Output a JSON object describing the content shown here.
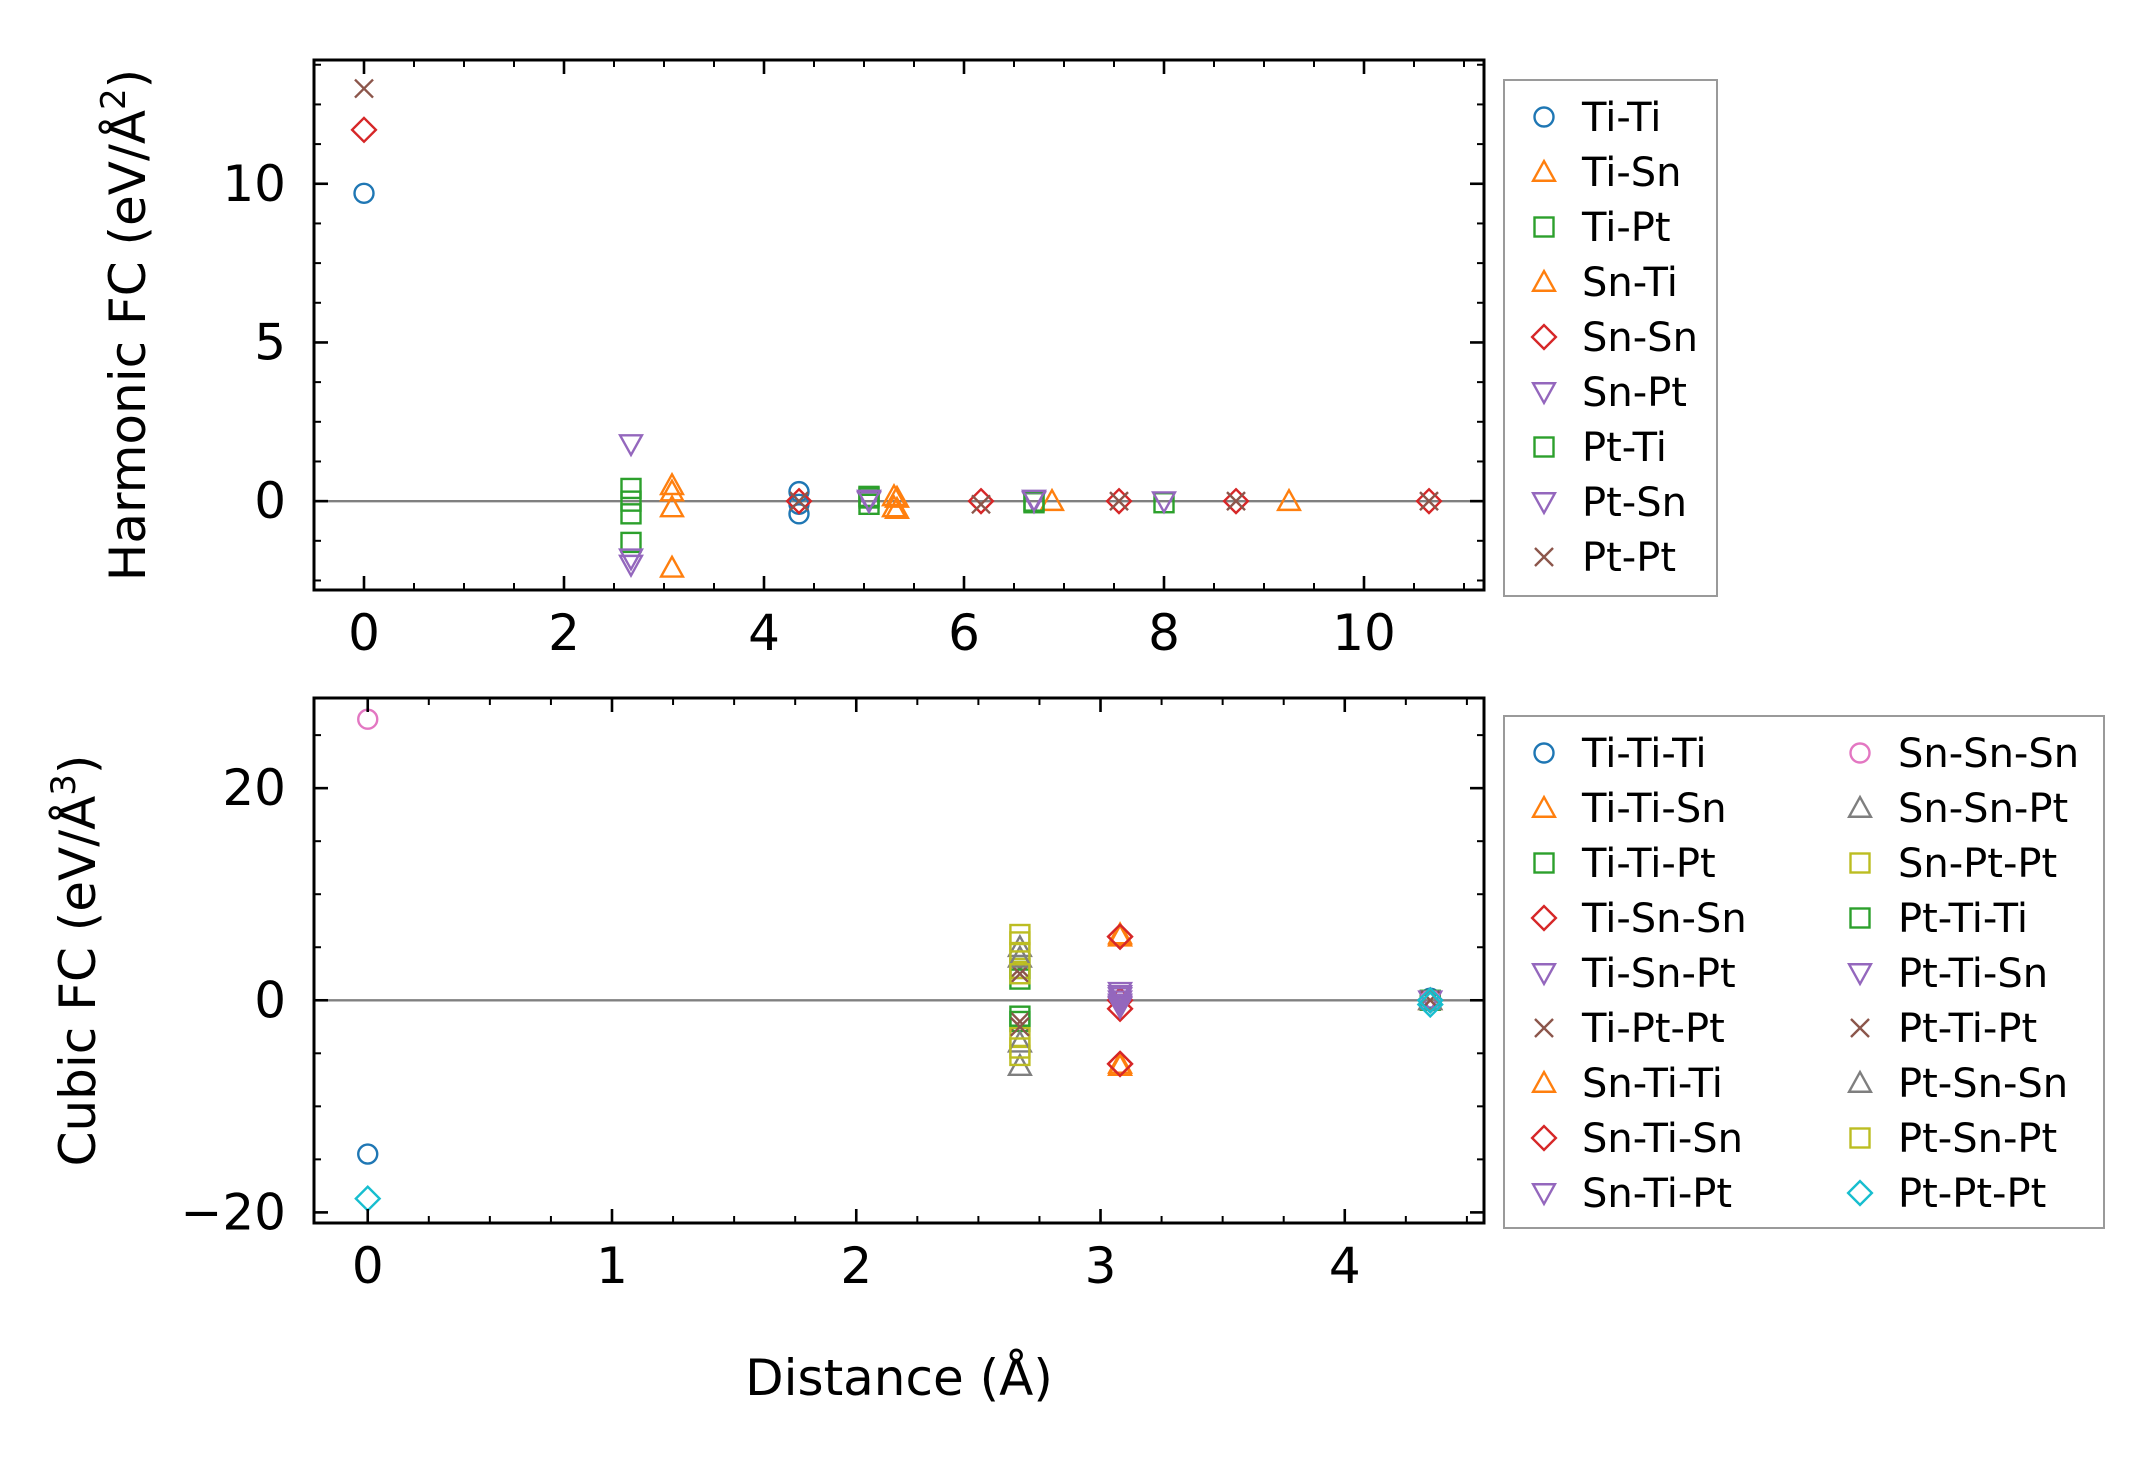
{
  "chart_data": [
    {
      "type": "scatter",
      "id": "harmonic",
      "ylabel_main": "Harmonic FC (eV/Å",
      "ylabel_sup": "2",
      "ylabel_close": ")",
      "xlim": [
        -0.5,
        11.2
      ],
      "ylim": [
        -2.8,
        13.9
      ],
      "xticks": [
        0,
        2,
        4,
        6,
        8,
        10
      ],
      "yticks": [
        0,
        5,
        10
      ],
      "xtick_labels": [
        "0",
        "2",
        "4",
        "6",
        "8",
        "10"
      ],
      "ytick_labels": [
        "0",
        "5",
        "10"
      ],
      "zero_line": 0,
      "legend_position": "outside-right",
      "series": [
        {
          "name": "Ti-Ti",
          "marker": "circle",
          "color": "#1f77b4",
          "points": [
            [
              0,
              9.7
            ],
            [
              4.35,
              0.3
            ],
            [
              4.35,
              -0.1
            ],
            [
              4.35,
              -0.4
            ]
          ]
        },
        {
          "name": "Ti-Sn",
          "marker": "triangle-up",
          "color": "#ff7f0e",
          "points": [
            [
              3.08,
              0.5
            ],
            [
              3.08,
              -0.2
            ],
            [
              3.08,
              -2.1
            ],
            [
              5.3,
              0.15
            ],
            [
              5.3,
              -0.2
            ],
            [
              6.88,
              0.0
            ],
            [
              9.25,
              0.0
            ]
          ]
        },
        {
          "name": "Ti-Pt",
          "marker": "square",
          "color": "#2ca02c",
          "points": [
            [
              2.67,
              0.4
            ],
            [
              2.67,
              -0.4
            ],
            [
              2.67,
              -1.3
            ],
            [
              5.05,
              0.15
            ],
            [
              5.05,
              -0.1
            ],
            [
              6.7,
              -0.05
            ],
            [
              8.0,
              -0.05
            ]
          ]
        },
        {
          "name": "Sn-Ti",
          "marker": "triangle-up",
          "color": "#ff7f0e",
          "points": [
            [
              3.08,
              0.3
            ],
            [
              5.33,
              0.1
            ],
            [
              5.33,
              -0.25
            ]
          ]
        },
        {
          "name": "Sn-Sn",
          "marker": "diamond",
          "color": "#d62728",
          "points": [
            [
              0,
              11.7
            ],
            [
              4.35,
              0.0
            ],
            [
              6.17,
              0.0
            ],
            [
              7.55,
              0.0
            ],
            [
              8.72,
              0.0
            ],
            [
              10.65,
              0.0
            ]
          ]
        },
        {
          "name": "Sn-Pt",
          "marker": "triangle-down",
          "color": "#9467bd",
          "points": [
            [
              2.67,
              1.8
            ],
            [
              2.67,
              -1.8
            ],
            [
              5.05,
              0.0
            ],
            [
              6.7,
              0.0
            ],
            [
              8.0,
              0.0
            ]
          ]
        },
        {
          "name": "Pt-Ti",
          "marker": "square",
          "color": "#2ca02c",
          "points": [
            [
              2.67,
              0.0
            ],
            [
              5.05,
              0.1
            ],
            [
              6.7,
              0.0
            ]
          ]
        },
        {
          "name": "Pt-Sn",
          "marker": "triangle-down",
          "color": "#9467bd",
          "points": [
            [
              2.67,
              -2.0
            ],
            [
              5.05,
              0.05
            ],
            [
              6.7,
              0.05
            ]
          ]
        },
        {
          "name": "Pt-Pt",
          "marker": "x",
          "color": "#8c564b",
          "points": [
            [
              0,
              13.0
            ],
            [
              4.35,
              0.0
            ],
            [
              6.17,
              -0.1
            ],
            [
              7.55,
              0.0
            ],
            [
              8.72,
              0.0
            ],
            [
              10.65,
              0.0
            ]
          ]
        }
      ]
    },
    {
      "type": "scatter",
      "id": "cubic",
      "ylabel_main": "Cubic FC (eV/Å",
      "ylabel_sup": "3",
      "ylabel_close": ")",
      "xlabel": "Distance (Å)",
      "xlim": [
        -0.22,
        4.57
      ],
      "ylim": [
        -21,
        28.5
      ],
      "xticks": [
        0,
        1,
        2,
        3,
        4
      ],
      "yticks": [
        -20,
        0,
        20
      ],
      "xtick_labels": [
        "0",
        "1",
        "2",
        "3",
        "4"
      ],
      "ytick_labels": [
        "−20",
        "0",
        "20"
      ],
      "zero_line": 0,
      "legend_position": "outside-right",
      "series": [
        {
          "name": "Ti-Ti-Ti",
          "marker": "circle",
          "color": "#1f77b4",
          "points": [
            [
              0,
              -14.5
            ],
            [
              4.35,
              0.2
            ]
          ]
        },
        {
          "name": "Ti-Ti-Sn",
          "marker": "triangle-up",
          "color": "#ff7f0e",
          "points": [
            [
              3.08,
              6.0
            ],
            [
              3.08,
              -6.0
            ],
            [
              4.35,
              0.0
            ]
          ]
        },
        {
          "name": "Ti-Ti-Pt",
          "marker": "square",
          "color": "#2ca02c",
          "points": [
            [
              2.67,
              3.0
            ],
            [
              2.67,
              -2.0
            ],
            [
              4.35,
              0.0
            ]
          ]
        },
        {
          "name": "Ti-Sn-Sn",
          "marker": "diamond",
          "color": "#d62728",
          "points": [
            [
              3.08,
              6.0
            ],
            [
              3.08,
              -6.0
            ],
            [
              3.08,
              -0.8
            ],
            [
              4.35,
              0.0
            ]
          ]
        },
        {
          "name": "Ti-Sn-Pt",
          "marker": "triangle-down",
          "color": "#9467bd",
          "points": [
            [
              3.08,
              0.5
            ],
            [
              3.08,
              -0.5
            ],
            [
              4.35,
              0.0
            ]
          ]
        },
        {
          "name": "Ti-Pt-Pt",
          "marker": "x",
          "color": "#8c564b",
          "points": [
            [
              2.67,
              3.0
            ],
            [
              2.67,
              -2.0
            ],
            [
              4.35,
              0.0
            ]
          ]
        },
        {
          "name": "Sn-Ti-Ti",
          "marker": "triangle-up",
          "color": "#ff7f0e",
          "points": [
            [
              3.08,
              6.2
            ],
            [
              3.08,
              -6.2
            ]
          ]
        },
        {
          "name": "Sn-Ti-Sn",
          "marker": "diamond",
          "color": "#d62728",
          "points": [
            [
              3.08,
              6.0
            ],
            [
              3.08,
              -6.0
            ],
            [
              3.08,
              0.0
            ]
          ]
        },
        {
          "name": "Sn-Ti-Pt",
          "marker": "triangle-down",
          "color": "#9467bd",
          "points": [
            [
              3.08,
              0.8
            ],
            [
              3.08,
              0.0
            ],
            [
              3.08,
              -0.6
            ]
          ]
        },
        {
          "name": "Sn-Sn-Sn",
          "marker": "circle",
          "color": "#e377c2",
          "points": [
            [
              0,
              26.5
            ],
            [
              4.35,
              0.0
            ]
          ]
        },
        {
          "name": "Sn-Sn-Pt",
          "marker": "triangle-up",
          "color": "#7f7f7f",
          "points": [
            [
              2.67,
              5.0
            ],
            [
              2.67,
              -6.2
            ],
            [
              4.35,
              0.0
            ]
          ]
        },
        {
          "name": "Sn-Pt-Pt",
          "marker": "square",
          "color": "#bcbd22",
          "points": [
            [
              2.67,
              6.2
            ],
            [
              2.67,
              4.5
            ],
            [
              2.67,
              3.0
            ],
            [
              2.67,
              -3.5
            ],
            [
              2.67,
              -5.2
            ]
          ]
        },
        {
          "name": "Pt-Ti-Ti",
          "marker": "square",
          "color": "#2ca02c",
          "points": [
            [
              2.67,
              2.0
            ],
            [
              2.67,
              -1.5
            ]
          ]
        },
        {
          "name": "Pt-Ti-Sn",
          "marker": "triangle-down",
          "color": "#9467bd",
          "points": [
            [
              3.08,
              0.3
            ],
            [
              3.08,
              -0.3
            ]
          ]
        },
        {
          "name": "Pt-Ti-Pt",
          "marker": "x",
          "color": "#8c564b",
          "points": [
            [
              2.67,
              2.5
            ],
            [
              2.67,
              -2.5
            ]
          ]
        },
        {
          "name": "Pt-Sn-Sn",
          "marker": "triangle-up",
          "color": "#7f7f7f",
          "points": [
            [
              2.67,
              4.0
            ],
            [
              2.67,
              -4.0
            ]
          ]
        },
        {
          "name": "Pt-Sn-Pt",
          "marker": "square",
          "color": "#bcbd22",
          "points": [
            [
              2.67,
              5.5
            ],
            [
              2.67,
              2.5
            ],
            [
              2.67,
              -4.5
            ]
          ]
        },
        {
          "name": "Pt-Pt-Pt",
          "marker": "diamond",
          "color": "#17becf",
          "points": [
            [
              0,
              -18.7
            ],
            [
              4.35,
              0.0
            ],
            [
              4.35,
              -0.4
            ]
          ]
        }
      ]
    }
  ]
}
